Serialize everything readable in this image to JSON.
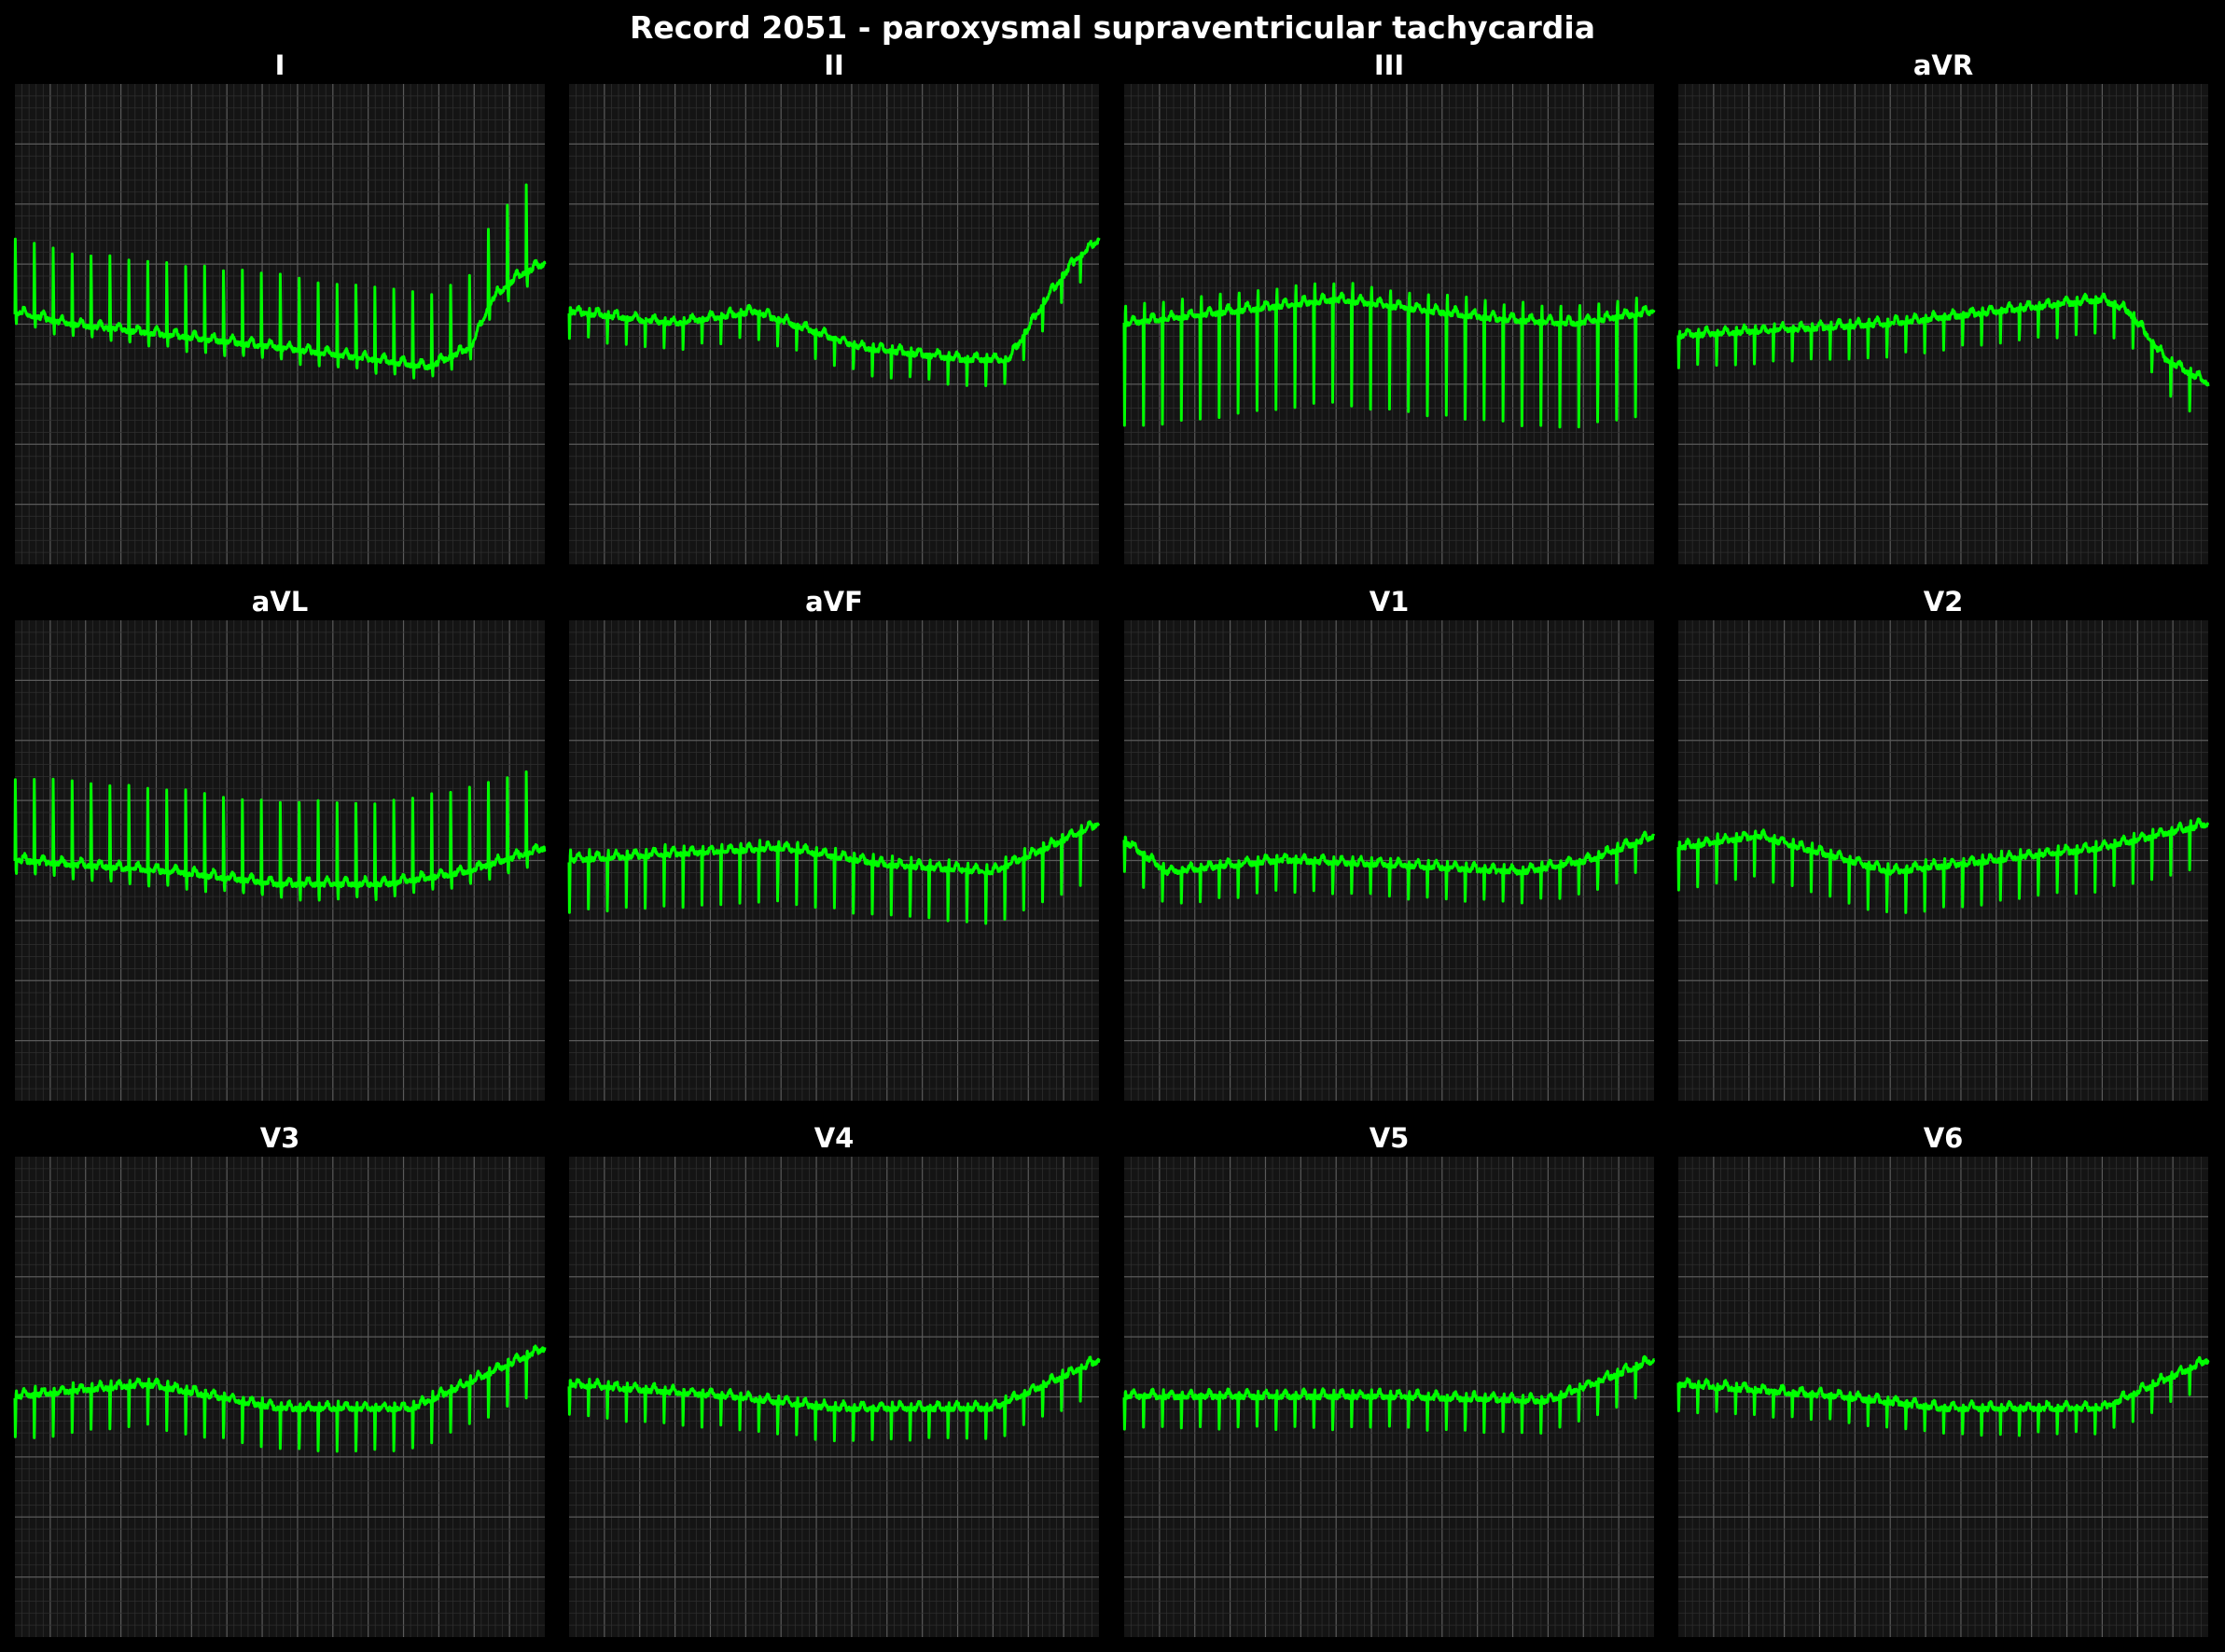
{
  "title": "Record 2051 - paroxysmal supraventricular tachycardia",
  "colors": {
    "background": "#000000",
    "panel": "#141414",
    "grid_minor": "#2e2e2e",
    "grid_major": "#5a5a5a",
    "trace": "#00ff00",
    "text": "#ffffff"
  },
  "chart_data": {
    "type": "line",
    "layout": "3 rows x 4 columns",
    "leads": [
      {
        "name": "I",
        "qrs_polarity": "positive",
        "beats": 28,
        "baseline": [
          [
            0,
            0.05
          ],
          [
            0.1,
            0.0
          ],
          [
            0.3,
            -0.05
          ],
          [
            0.5,
            -0.1
          ],
          [
            0.68,
            -0.15
          ],
          [
            0.78,
            -0.18
          ],
          [
            0.86,
            -0.1
          ],
          [
            0.9,
            0.1
          ],
          [
            0.95,
            0.2
          ],
          [
            1.0,
            0.25
          ]
        ],
        "amplitude": [
          [
            0,
            0.35
          ],
          [
            0.5,
            0.35
          ],
          [
            0.85,
            0.35
          ],
          [
            1.0,
            0.45
          ]
        ]
      },
      {
        "name": "II",
        "qrs_polarity": "negative",
        "beats": 28,
        "baseline": [
          [
            0,
            0.05
          ],
          [
            0.2,
            0.0
          ],
          [
            0.35,
            0.05
          ],
          [
            0.55,
            -0.1
          ],
          [
            0.75,
            -0.15
          ],
          [
            0.83,
            -0.15
          ],
          [
            0.9,
            0.1
          ],
          [
            0.95,
            0.25
          ],
          [
            1.0,
            0.35
          ]
        ],
        "amplitude": [
          [
            0,
            -0.12
          ],
          [
            1.0,
            -0.12
          ]
        ]
      },
      {
        "name": "III",
        "qrs_polarity": "negative",
        "beats": 28,
        "baseline": [
          [
            0,
            0.0
          ],
          [
            0.4,
            0.1
          ],
          [
            0.7,
            0.02
          ],
          [
            0.85,
            0.0
          ],
          [
            1.0,
            0.05
          ]
        ],
        "amplitude": [
          [
            0,
            -0.5
          ],
          [
            1.0,
            -0.5
          ]
        ]
      },
      {
        "name": "aVR",
        "qrs_polarity": "negative",
        "beats": 28,
        "baseline": [
          [
            0,
            -0.05
          ],
          [
            0.4,
            0.0
          ],
          [
            0.6,
            0.05
          ],
          [
            0.8,
            0.1
          ],
          [
            0.85,
            0.05
          ],
          [
            0.92,
            -0.15
          ],
          [
            1.0,
            -0.25
          ]
        ],
        "amplitude": [
          [
            0,
            -0.15
          ],
          [
            0.9,
            -0.15
          ],
          [
            1.0,
            -0.2
          ]
        ]
      },
      {
        "name": "aVL",
        "qrs_polarity": "positive",
        "beats": 28,
        "baseline": [
          [
            0,
            0.0
          ],
          [
            0.3,
            -0.05
          ],
          [
            0.5,
            -0.1
          ],
          [
            0.7,
            -0.1
          ],
          [
            0.85,
            -0.05
          ],
          [
            1.0,
            0.05
          ]
        ],
        "amplitude": [
          [
            0,
            0.4
          ],
          [
            1.0,
            0.4
          ]
        ]
      },
      {
        "name": "aVF",
        "qrs_polarity": "negative",
        "beats": 28,
        "baseline": [
          [
            0,
            0.0
          ],
          [
            0.4,
            0.05
          ],
          [
            0.6,
            -0.02
          ],
          [
            0.8,
            -0.05
          ],
          [
            0.9,
            0.05
          ],
          [
            1.0,
            0.15
          ]
        ],
        "amplitude": [
          [
            0,
            -0.25
          ],
          [
            1.0,
            -0.25
          ]
        ]
      },
      {
        "name": "V1",
        "qrs_polarity": "negative",
        "beats": 28,
        "baseline": [
          [
            0,
            0.08
          ],
          [
            0.08,
            -0.05
          ],
          [
            0.3,
            0.0
          ],
          [
            0.5,
            -0.02
          ],
          [
            0.75,
            -0.05
          ],
          [
            0.88,
            0.0
          ],
          [
            1.0,
            0.1
          ]
        ],
        "amplitude": [
          [
            0,
            -0.15
          ],
          [
            1.0,
            -0.15
          ]
        ]
      },
      {
        "name": "V2",
        "qrs_polarity": "negative",
        "beats": 28,
        "baseline": [
          [
            0,
            0.05
          ],
          [
            0.15,
            0.1
          ],
          [
            0.4,
            -0.05
          ],
          [
            0.6,
            0.0
          ],
          [
            0.8,
            0.05
          ],
          [
            1.0,
            0.15
          ]
        ],
        "amplitude": [
          [
            0,
            -0.2
          ],
          [
            1.0,
            -0.2
          ]
        ]
      },
      {
        "name": "V3",
        "qrs_polarity": "negative",
        "beats": 28,
        "baseline": [
          [
            0,
            0.0
          ],
          [
            0.25,
            0.05
          ],
          [
            0.5,
            -0.05
          ],
          [
            0.75,
            -0.05
          ],
          [
            0.9,
            0.1
          ],
          [
            1.0,
            0.2
          ]
        ],
        "amplitude": [
          [
            0,
            -0.2
          ],
          [
            1.0,
            -0.2
          ]
        ]
      },
      {
        "name": "V4",
        "qrs_polarity": "negative",
        "beats": 28,
        "baseline": [
          [
            0,
            0.05
          ],
          [
            0.3,
            0.0
          ],
          [
            0.5,
            -0.05
          ],
          [
            0.8,
            -0.05
          ],
          [
            1.0,
            0.15
          ]
        ],
        "amplitude": [
          [
            0,
            -0.15
          ],
          [
            1.0,
            -0.15
          ]
        ]
      },
      {
        "name": "V5",
        "qrs_polarity": "negative",
        "beats": 28,
        "baseline": [
          [
            0,
            0.0
          ],
          [
            0.5,
            0.0
          ],
          [
            0.8,
            -0.02
          ],
          [
            1.0,
            0.15
          ]
        ],
        "amplitude": [
          [
            0,
            -0.15
          ],
          [
            1.0,
            -0.15
          ]
        ]
      },
      {
        "name": "V6",
        "qrs_polarity": "negative",
        "beats": 28,
        "baseline": [
          [
            0,
            0.05
          ],
          [
            0.3,
            0.0
          ],
          [
            0.5,
            -0.05
          ],
          [
            0.8,
            -0.05
          ],
          [
            1.0,
            0.15
          ]
        ],
        "amplitude": [
          [
            0,
            -0.12
          ],
          [
            1.0,
            -0.12
          ]
        ]
      }
    ]
  }
}
